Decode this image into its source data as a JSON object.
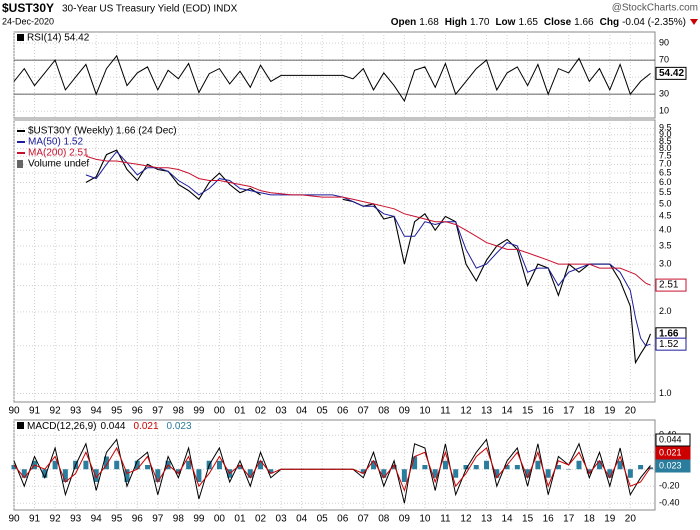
{
  "header": {
    "symbol": "$UST30Y",
    "name": "30-Year US Treasury Yield (EOD) INDX",
    "date": "24-Dec-2020",
    "brand": "@StockCharts.com",
    "quote": [
      {
        "label": "Open",
        "value": "1.68"
      },
      {
        "label": "High",
        "value": "1.70"
      },
      {
        "label": "Low",
        "value": "1.65"
      },
      {
        "label": "Close",
        "value": "1.66"
      },
      {
        "label": "Chg",
        "value": "-0.04 (-2.35%)"
      }
    ]
  },
  "chart_data": [
    {
      "type": "line",
      "xlim": [
        1990,
        2021.2
      ],
      "ylim": [
        2,
        103
      ],
      "yticks": [
        90,
        70,
        50,
        30,
        10
      ],
      "ref_lines": [
        70,
        30
      ],
      "grid": true,
      "x": [
        1990,
        1990.5,
        1991,
        1991.5,
        1992,
        1992.5,
        1993,
        1993.5,
        1994,
        1994.5,
        1995,
        1995.5,
        1996,
        1996.5,
        1997,
        1997.5,
        1998,
        1998.5,
        1999,
        1999.5,
        2000,
        2000.5,
        2001,
        2001.5,
        2002,
        2002.5,
        2003,
        2003.5,
        2004,
        2004.5,
        2005,
        2005.5,
        2006,
        2006.5,
        2007,
        2007.5,
        2008,
        2008.5,
        2009,
        2009.5,
        2010,
        2010.5,
        2011,
        2011.5,
        2012,
        2012.5,
        2013,
        2013.5,
        2014,
        2014.5,
        2015,
        2015.5,
        2016,
        2016.5,
        2017,
        2017.5,
        2018,
        2018.5,
        2019,
        2019.5,
        2020,
        2020.5,
        2020.98
      ],
      "series": [
        {
          "name": "RSI(14) 54.42",
          "color": "#000000",
          "values": [
            45,
            60,
            40,
            55,
            70,
            35,
            50,
            65,
            30,
            60,
            75,
            40,
            55,
            62,
            35,
            58,
            48,
            66,
            32,
            54,
            60,
            42,
            57,
            38,
            64,
            45,
            52,
            52,
            52,
            52,
            52,
            52,
            52,
            48,
            60,
            35,
            55,
            40,
            22,
            58,
            62,
            38,
            66,
            30,
            45,
            60,
            70,
            35,
            55,
            62,
            40,
            65,
            30,
            60,
            55,
            72,
            45,
            60,
            35,
            65,
            30,
            45,
            54.42
          ]
        }
      ]
    },
    {
      "type": "line",
      "log_scale": true,
      "xlim": [
        1990,
        2021.2
      ],
      "ylim": [
        0.93,
        10.2
      ],
      "grid": true,
      "yticks": [
        9.5,
        {
          "value": 9,
          "label": "9.0"
        },
        8.5,
        {
          "value": 8,
          "label": "8.0"
        },
        7.5,
        {
          "value": 7,
          "label": "7.0"
        },
        6.5,
        {
          "value": 6,
          "label": "6.0"
        },
        5.5,
        {
          "value": 5,
          "label": "5.0"
        },
        4.5,
        {
          "value": 4,
          "label": "4.0"
        },
        3.5,
        {
          "value": 3,
          "label": "3.0"
        },
        2.5,
        {
          "value": 2,
          "label": "2.0"
        },
        1.5,
        {
          "value": 1,
          "label": "1.0"
        }
      ],
      "xticks": [
        {
          "value": 1990,
          "label": "90"
        },
        {
          "value": 1991,
          "label": "91"
        },
        {
          "value": 1992,
          "label": "92"
        },
        {
          "value": 1993,
          "label": "93"
        },
        {
          "value": 1994,
          "label": "94"
        },
        {
          "value": 1995,
          "label": "95"
        },
        {
          "value": 1996,
          "label": "96"
        },
        {
          "value": 1997,
          "label": "97"
        },
        {
          "value": 1998,
          "label": "98"
        },
        {
          "value": 1999,
          "label": "99"
        },
        {
          "value": 2000,
          "label": "00"
        },
        {
          "value": 2001,
          "label": "01"
        },
        {
          "value": 2002,
          "label": "02"
        },
        {
          "value": 2003,
          "label": "03"
        },
        {
          "value": 2004,
          "label": "04"
        },
        {
          "value": 2005,
          "label": "05"
        },
        {
          "value": 2006,
          "label": "06"
        },
        {
          "value": 2007,
          "label": "07"
        },
        {
          "value": 2008,
          "label": "08"
        },
        {
          "value": 2009,
          "label": "09"
        },
        {
          "value": 2010,
          "label": "10"
        },
        {
          "value": 2011,
          "label": "11"
        },
        {
          "value": 2012,
          "label": "12"
        },
        {
          "value": 2013,
          "label": "13"
        },
        {
          "value": 2014,
          "label": "14"
        },
        {
          "value": 2015,
          "label": "15"
        },
        {
          "value": 2016,
          "label": "16"
        },
        {
          "value": 2017,
          "label": "17"
        },
        {
          "value": 2018,
          "label": "18"
        },
        {
          "value": 2019,
          "label": "19"
        },
        {
          "value": 2020,
          "label": "20"
        }
      ],
      "legend_extra": "Volume undef",
      "x": [
        1993.5,
        1994,
        1994.5,
        1995,
        1995.5,
        1996,
        1996.5,
        1997,
        1997.5,
        1998,
        1998.5,
        1999,
        1999.5,
        2000,
        2000.5,
        2001,
        2001.5,
        2002,
        2002.5,
        2003,
        2003.5,
        2004,
        2004.5,
        2005,
        2005.5,
        2006,
        2006.5,
        2007,
        2007.5,
        2008,
        2008.5,
        2009,
        2009.5,
        2010,
        2010.5,
        2011,
        2011.5,
        2012,
        2012.5,
        2013,
        2013.5,
        2014,
        2014.5,
        2015,
        2015.5,
        2016,
        2016.5,
        2017,
        2017.5,
        2018,
        2018.5,
        2019,
        2019.5,
        2020,
        2020.25,
        2020.5,
        2020.75,
        2020.98
      ],
      "series": [
        {
          "name": "$UST30Y (Weekly) 1.66 (24 Dec)",
          "color": "#000000",
          "values": [
            6.0,
            6.3,
            7.6,
            7.9,
            6.7,
            6.1,
            7.0,
            6.7,
            6.6,
            5.9,
            5.6,
            5.2,
            6.0,
            6.5,
            5.9,
            5.5,
            5.7,
            5.4,
            null,
            null,
            null,
            null,
            null,
            null,
            null,
            5.2,
            5.1,
            4.9,
            5.0,
            4.4,
            4.5,
            3.0,
            4.3,
            4.6,
            4.0,
            4.5,
            4.3,
            3.0,
            2.6,
            3.1,
            3.5,
            3.7,
            3.4,
            2.5,
            3.0,
            2.9,
            2.3,
            3.0,
            2.8,
            3.0,
            3.0,
            3.0,
            2.6,
            2.1,
            1.3,
            1.4,
            1.5,
            1.66
          ]
        },
        {
          "name": "MA(50) 1.52",
          "color": "#1c1c9c",
          "values": [
            6.4,
            6.2,
            7.0,
            7.8,
            7.1,
            6.4,
            6.8,
            6.8,
            6.6,
            6.1,
            5.8,
            5.4,
            5.7,
            6.2,
            6.1,
            5.7,
            5.6,
            5.5,
            5.4,
            5.4,
            5.4,
            5.4,
            5.4,
            5.4,
            5.4,
            5.3,
            5.1,
            4.9,
            4.9,
            4.6,
            4.5,
            3.8,
            3.8,
            4.3,
            4.2,
            4.3,
            4.3,
            3.4,
            2.9,
            3.0,
            3.3,
            3.6,
            3.5,
            2.8,
            2.9,
            2.9,
            2.5,
            2.8,
            2.9,
            3.0,
            3.0,
            3.0,
            2.8,
            2.4,
            1.9,
            1.6,
            1.5,
            1.52
          ]
        },
        {
          "name": "MA(200) 2.51",
          "color": "#c8102e",
          "values": [
            7.5,
            7.3,
            7.2,
            7.2,
            7.1,
            7.0,
            6.9,
            6.8,
            6.8,
            6.7,
            6.5,
            6.2,
            6.1,
            6.1,
            6.0,
            5.9,
            5.8,
            5.6,
            5.5,
            5.45,
            5.4,
            5.4,
            5.35,
            5.3,
            5.3,
            5.3,
            5.2,
            5.1,
            5.0,
            4.9,
            4.8,
            4.6,
            4.5,
            4.4,
            4.3,
            4.3,
            4.2,
            4.0,
            3.8,
            3.6,
            3.5,
            3.4,
            3.4,
            3.3,
            3.2,
            3.1,
            3.0,
            3.0,
            3.0,
            3.0,
            2.9,
            2.9,
            2.9,
            2.8,
            2.75,
            2.65,
            2.55,
            2.51
          ]
        }
      ]
    },
    {
      "type": "line",
      "title": "MACD(12,26,9)",
      "xlim": [
        1990,
        2021.2
      ],
      "ylim": [
        -0.48,
        0.58
      ],
      "grid": true,
      "yticks": [
        {
          "value": 0.4,
          "label": "0.40"
        },
        {
          "value": 0.2,
          "label": "0.20"
        },
        {
          "value": 0,
          "label": "0.00"
        },
        {
          "value": -0.2,
          "label": "-0.20"
        },
        {
          "value": -0.4,
          "label": "-0.40"
        }
      ],
      "xticks": [
        {
          "value": 1990,
          "label": "90"
        },
        {
          "value": 1991,
          "label": "91"
        },
        {
          "value": 1992,
          "label": "92"
        },
        {
          "value": 1993,
          "label": "93"
        },
        {
          "value": 1994,
          "label": "94"
        },
        {
          "value": 1995,
          "label": "95"
        },
        {
          "value": 1996,
          "label": "96"
        },
        {
          "value": 1997,
          "label": "97"
        },
        {
          "value": 1998,
          "label": "98"
        },
        {
          "value": 1999,
          "label": "99"
        },
        {
          "value": 2000,
          "label": "00"
        },
        {
          "value": 2001,
          "label": "01"
        },
        {
          "value": 2002,
          "label": "02"
        },
        {
          "value": 2003,
          "label": "03"
        },
        {
          "value": 2004,
          "label": "04"
        },
        {
          "value": 2005,
          "label": "05"
        },
        {
          "value": 2006,
          "label": "06"
        },
        {
          "value": 2007,
          "label": "07"
        },
        {
          "value": 2008,
          "label": "08"
        },
        {
          "value": 2009,
          "label": "09"
        },
        {
          "value": 2010,
          "label": "10"
        },
        {
          "value": 2011,
          "label": "11"
        },
        {
          "value": 2012,
          "label": "12"
        },
        {
          "value": 2013,
          "label": "13"
        },
        {
          "value": 2014,
          "label": "14"
        },
        {
          "value": 2015,
          "label": "15"
        },
        {
          "value": 2016,
          "label": "16"
        },
        {
          "value": 2017,
          "label": "17"
        },
        {
          "value": 2018,
          "label": "18"
        },
        {
          "value": 2019,
          "label": "19"
        },
        {
          "value": 2020,
          "label": "20"
        }
      ],
      "x": [
        1990,
        1990.5,
        1991,
        1991.5,
        1992,
        1992.5,
        1993,
        1993.5,
        1994,
        1994.5,
        1995,
        1995.5,
        1996,
        1996.5,
        1997,
        1997.5,
        1998,
        1998.5,
        1999,
        1999.5,
        2000,
        2000.5,
        2001,
        2001.5,
        2002,
        2002.5,
        2003,
        2003.5,
        2004,
        2004.5,
        2005,
        2005.5,
        2006,
        2006.5,
        2007,
        2007.5,
        2008,
        2008.5,
        2009,
        2009.5,
        2010,
        2010.5,
        2011,
        2011.5,
        2012,
        2012.5,
        2013,
        2013.5,
        2014,
        2014.5,
        2015,
        2015.5,
        2016,
        2016.5,
        2017,
        2017.5,
        2018,
        2018.5,
        2019,
        2019.5,
        2020,
        2020.5,
        2020.98
      ],
      "series": [
        {
          "type": "histogram",
          "color": "#2a7d9c",
          "values": [
            0.05,
            -0.1,
            0.1,
            -0.1,
            0.1,
            -0.15,
            0.1,
            0.1,
            -0.15,
            0.15,
            0.1,
            -0.15,
            0.1,
            0.05,
            -0.15,
            0.1,
            -0.05,
            0.1,
            -0.15,
            0.1,
            0.1,
            -0.1,
            0.05,
            -0.1,
            0.1,
            -0.05,
            0,
            0,
            0,
            0,
            0,
            0,
            0,
            0,
            -0.05,
            0.1,
            -0.1,
            0.05,
            -0.15,
            0.15,
            0.05,
            -0.1,
            0.1,
            -0.1,
            0.05,
            0.05,
            0.1,
            -0.1,
            0.05,
            0.05,
            -0.1,
            0.1,
            -0.1,
            0.05,
            0,
            0.1,
            -0.05,
            0.1,
            -0.1,
            0.1,
            -0.1,
            0.05,
            0.023
          ]
        },
        {
          "color": "#000000",
          "values": [
            0.1,
            -0.2,
            0.15,
            -0.1,
            0.25,
            -0.3,
            0.05,
            0.3,
            -0.25,
            0.2,
            0.35,
            -0.2,
            0.1,
            0.2,
            -0.3,
            0.15,
            -0.1,
            0.25,
            -0.35,
            0.05,
            0.25,
            -0.15,
            0.1,
            -0.2,
            0.2,
            -0.1,
            0,
            0,
            0,
            0,
            0,
            0,
            0,
            0,
            -0.1,
            0.2,
            -0.2,
            0.1,
            -0.4,
            0.3,
            0.25,
            -0.25,
            0.3,
            -0.3,
            0,
            0.2,
            0.35,
            -0.2,
            0.1,
            0.25,
            -0.2,
            0.3,
            -0.3,
            0.15,
            0.05,
            0.3,
            -0.1,
            0.2,
            -0.2,
            0.25,
            -0.3,
            -0.1,
            0.044
          ]
        },
        {
          "color": "#cc0000",
          "values": [
            0.05,
            -0.1,
            0.05,
            0,
            0.15,
            -0.15,
            -0.05,
            0.2,
            -0.1,
            0.05,
            0.25,
            -0.05,
            0,
            0.15,
            -0.15,
            0.05,
            -0.05,
            0.15,
            -0.2,
            -0.05,
            0.15,
            -0.05,
            0.05,
            -0.1,
            0.1,
            -0.05,
            0,
            0,
            0,
            0,
            0,
            0,
            0,
            0,
            -0.05,
            0.1,
            -0.1,
            0.05,
            -0.25,
            0.15,
            0.2,
            -0.15,
            0.2,
            -0.2,
            -0.05,
            0.15,
            0.25,
            -0.1,
            0.05,
            0.2,
            -0.1,
            0.2,
            -0.2,
            0.1,
            0.05,
            0.2,
            -0.05,
            0.1,
            -0.1,
            0.15,
            -0.2,
            -0.15,
            0.021
          ]
        }
      ]
    }
  ]
}
